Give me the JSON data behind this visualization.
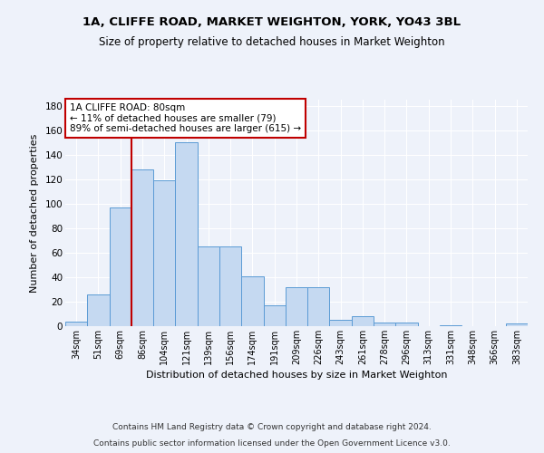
{
  "title1": "1A, CLIFFE ROAD, MARKET WEIGHTON, YORK, YO43 3BL",
  "title2": "Size of property relative to detached houses in Market Weighton",
  "xlabel": "Distribution of detached houses by size in Market Weighton",
  "ylabel": "Number of detached properties",
  "footnote1": "Contains HM Land Registry data © Crown copyright and database right 2024.",
  "footnote2": "Contains public sector information licensed under the Open Government Licence v3.0.",
  "categories": [
    "34sqm",
    "51sqm",
    "69sqm",
    "86sqm",
    "104sqm",
    "121sqm",
    "139sqm",
    "156sqm",
    "174sqm",
    "191sqm",
    "209sqm",
    "226sqm",
    "243sqm",
    "261sqm",
    "278sqm",
    "296sqm",
    "313sqm",
    "331sqm",
    "348sqm",
    "366sqm",
    "383sqm"
  ],
  "values": [
    4,
    26,
    97,
    128,
    119,
    150,
    65,
    65,
    41,
    17,
    32,
    32,
    5,
    8,
    3,
    3,
    0,
    1,
    0,
    0,
    2
  ],
  "bar_color": "#c5d9f1",
  "bar_edge_color": "#5b9bd5",
  "vline_color": "#c00000",
  "annotation_title": "1A CLIFFE ROAD: 80sqm",
  "annotation_line1": "← 11% of detached houses are smaller (79)",
  "annotation_line2": "89% of semi-detached houses are larger (615) →",
  "annotation_box_color": "#ffffff",
  "annotation_box_edge": "#c00000",
  "ylim": [
    0,
    185
  ],
  "background_color": "#eef2fa",
  "grid_color": "#ffffff"
}
